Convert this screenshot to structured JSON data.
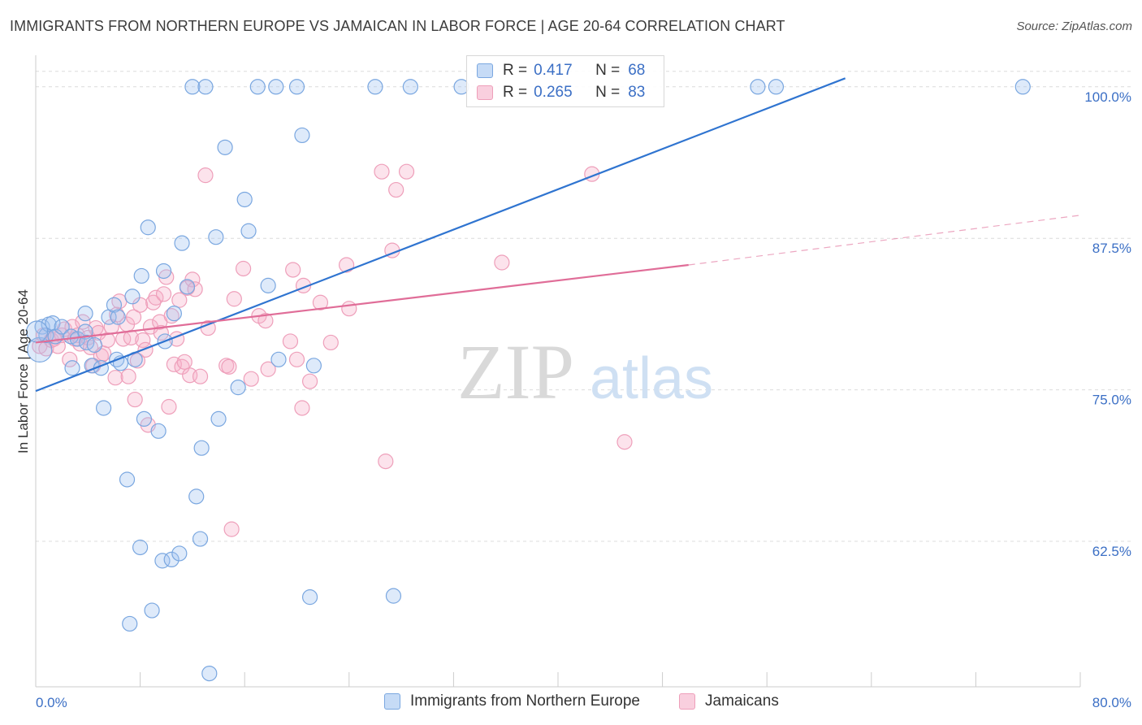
{
  "chart_data": {
    "type": "scatter",
    "title": "IMMIGRANTS FROM NORTHERN EUROPE VS JAMAICAN IN LABOR FORCE | AGE 20-64 CORRELATION CHART",
    "source": "Source: ZipAtlas.com",
    "xlabel": "",
    "ylabel": "In Labor Force | Age 20-64",
    "xlim": [
      0,
      80
    ],
    "ylim": [
      50.5,
      102.6
    ],
    "x_tick_labels": {
      "min": "0.0%",
      "max": "80.0%"
    },
    "y_ticks": [
      {
        "value": 100.0,
        "label": "100.0%"
      },
      {
        "value": 87.5,
        "label": "87.5%"
      },
      {
        "value": 75.0,
        "label": "75.0%"
      },
      {
        "value": 62.5,
        "label": "62.5%"
      }
    ],
    "grid": true,
    "legend_position": "top-center",
    "watermark": "ZIPatlas",
    "series": [
      {
        "name": "Immigrants from Northern Europe",
        "color": "#7aa7e0",
        "fill": "rgba(160,195,240,0.35)",
        "line_color": "#2f74d0",
        "R": "0.417",
        "N": "68",
        "trend": {
          "x0": 0,
          "y0": 74.9,
          "x1": 62,
          "y1": 100.7,
          "dashed_to": null
        },
        "points": [
          [
            0.3,
            78.3
          ],
          [
            0.5,
            80.2
          ],
          [
            0.8,
            79.5
          ],
          [
            1.0,
            80.4
          ],
          [
            1.3,
            80.5
          ],
          [
            1.5,
            79.4
          ],
          [
            2.0,
            80.2
          ],
          [
            2.7,
            79.4
          ],
          [
            2.8,
            76.8
          ],
          [
            3.2,
            79.2
          ],
          [
            3.8,
            79.8
          ],
          [
            3.9,
            78.9
          ],
          [
            3.8,
            81.3
          ],
          [
            4.3,
            77.0
          ],
          [
            5.0,
            76.8
          ],
          [
            4.5,
            78.7
          ],
          [
            5.2,
            73.5
          ],
          [
            5.6,
            81.0
          ],
          [
            6.0,
            82.0
          ],
          [
            6.2,
            77.5
          ],
          [
            6.3,
            81.0
          ],
          [
            6.5,
            77.2
          ],
          [
            7.0,
            67.6
          ],
          [
            7.2,
            55.7
          ],
          [
            7.4,
            82.7
          ],
          [
            7.6,
            77.5
          ],
          [
            8.0,
            62.0
          ],
          [
            8.1,
            84.4
          ],
          [
            8.3,
            72.6
          ],
          [
            8.6,
            88.4
          ],
          [
            8.9,
            56.8
          ],
          [
            9.4,
            71.6
          ],
          [
            9.9,
            79.0
          ],
          [
            9.8,
            84.8
          ],
          [
            9.7,
            60.9
          ],
          [
            10.4,
            61.0
          ],
          [
            10.6,
            81.3
          ],
          [
            11.0,
            61.5
          ],
          [
            11.2,
            87.1
          ],
          [
            11.6,
            83.5
          ],
          [
            12.0,
            100.0
          ],
          [
            12.3,
            66.2
          ],
          [
            12.6,
            62.7
          ],
          [
            12.7,
            70.2
          ],
          [
            13.0,
            100.0
          ],
          [
            13.3,
            51.6
          ],
          [
            13.8,
            87.6
          ],
          [
            14.0,
            72.6
          ],
          [
            14.5,
            95.0
          ],
          [
            15.5,
            75.2
          ],
          [
            16.0,
            90.7
          ],
          [
            17.0,
            100.0
          ],
          [
            16.3,
            88.1
          ],
          [
            17.8,
            83.6
          ],
          [
            18.4,
            100.0
          ],
          [
            18.6,
            77.5
          ],
          [
            20.0,
            100.0
          ],
          [
            20.4,
            96.0
          ],
          [
            21.0,
            57.9
          ],
          [
            21.3,
            77.0
          ],
          [
            26.0,
            100.0
          ],
          [
            27.4,
            58.0
          ],
          [
            28.7,
            100.0
          ],
          [
            32.6,
            100.0
          ],
          [
            55.3,
            100.0
          ],
          [
            56.7,
            100.0
          ],
          [
            75.6,
            100.0
          ],
          [
            0.1,
            79.8
          ]
        ],
        "sizes_note": "mostly uniform; two enlarged markers near the left axis"
      },
      {
        "name": "Jamaicans",
        "color": "#ee9fba",
        "fill": "rgba(245,175,200,0.35)",
        "line_color": "#e06d98",
        "R": "0.265",
        "N": "83",
        "trend": {
          "x0": 0,
          "y0": 78.9,
          "x1": 50,
          "y1": 85.3,
          "dashed_to": {
            "x": 80,
            "y": 89.4
          }
        },
        "points": [
          [
            0.3,
            78.6
          ],
          [
            0.6,
            79.5
          ],
          [
            0.8,
            78.4
          ],
          [
            1.2,
            79.1
          ],
          [
            1.4,
            79.2
          ],
          [
            1.7,
            78.6
          ],
          [
            2.0,
            79.5
          ],
          [
            2.2,
            80.0
          ],
          [
            2.6,
            77.5
          ],
          [
            2.8,
            80.2
          ],
          [
            3.0,
            79.2
          ],
          [
            3.2,
            79.5
          ],
          [
            3.4,
            78.8
          ],
          [
            3.6,
            80.6
          ],
          [
            4.0,
            79.3
          ],
          [
            4.2,
            78.5
          ],
          [
            4.4,
            77.0
          ],
          [
            4.6,
            80.1
          ],
          [
            4.8,
            79.7
          ],
          [
            5.0,
            77.8
          ],
          [
            5.2,
            78.0
          ],
          [
            5.5,
            79.1
          ],
          [
            5.8,
            80.2
          ],
          [
            6.1,
            76.0
          ],
          [
            6.2,
            81.2
          ],
          [
            6.4,
            82.3
          ],
          [
            6.7,
            79.2
          ],
          [
            7.0,
            80.4
          ],
          [
            7.1,
            76.1
          ],
          [
            7.3,
            79.3
          ],
          [
            7.5,
            81.0
          ],
          [
            7.6,
            74.2
          ],
          [
            7.8,
            77.4
          ],
          [
            8.0,
            82.0
          ],
          [
            8.2,
            79.1
          ],
          [
            8.4,
            78.3
          ],
          [
            8.6,
            72.1
          ],
          [
            8.8,
            80.2
          ],
          [
            9.0,
            82.2
          ],
          [
            9.2,
            82.6
          ],
          [
            9.5,
            80.6
          ],
          [
            9.6,
            79.7
          ],
          [
            9.8,
            82.9
          ],
          [
            10.0,
            84.3
          ],
          [
            10.2,
            73.6
          ],
          [
            10.4,
            81.1
          ],
          [
            10.6,
            77.1
          ],
          [
            10.8,
            79.2
          ],
          [
            11.0,
            82.4
          ],
          [
            11.2,
            76.9
          ],
          [
            11.4,
            77.3
          ],
          [
            11.6,
            83.4
          ],
          [
            11.8,
            76.2
          ],
          [
            12.0,
            84.1
          ],
          [
            12.2,
            83.3
          ],
          [
            12.6,
            76.1
          ],
          [
            13.0,
            92.7
          ],
          [
            13.2,
            80.1
          ],
          [
            14.6,
            77.0
          ],
          [
            14.8,
            76.9
          ],
          [
            15.0,
            63.5
          ],
          [
            15.2,
            82.5
          ],
          [
            15.9,
            85.0
          ],
          [
            16.5,
            75.9
          ],
          [
            17.1,
            81.1
          ],
          [
            17.6,
            80.7
          ],
          [
            17.8,
            76.7
          ],
          [
            19.5,
            79.0
          ],
          [
            19.7,
            84.9
          ],
          [
            20.0,
            77.5
          ],
          [
            20.4,
            73.5
          ],
          [
            20.5,
            83.6
          ],
          [
            21.0,
            75.7
          ],
          [
            21.8,
            82.2
          ],
          [
            22.6,
            78.9
          ],
          [
            23.8,
            85.3
          ],
          [
            24.0,
            81.7
          ],
          [
            26.5,
            93.0
          ],
          [
            26.8,
            69.1
          ],
          [
            27.3,
            86.5
          ],
          [
            27.6,
            91.5
          ],
          [
            28.4,
            93.0
          ],
          [
            35.7,
            85.5
          ],
          [
            42.6,
            92.8
          ],
          [
            45.1,
            70.7
          ]
        ]
      }
    ]
  },
  "bottom_legend": {
    "items": [
      "Immigrants from Northern Europe",
      "Jamaicans"
    ]
  }
}
